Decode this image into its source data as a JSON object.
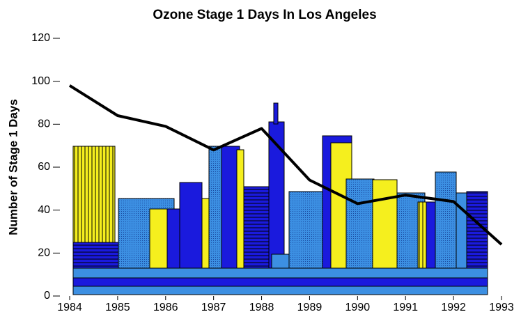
{
  "chart_data": {
    "type": "line",
    "title": "Ozone Stage 1 Days In Los Angeles",
    "y_label": "Number of Stage 1 Days",
    "x": [
      1984,
      1985,
      1986,
      1987,
      1988,
      1989,
      1990,
      1991,
      1992,
      1993
    ],
    "values": [
      98,
      84,
      79,
      68,
      78,
      54,
      43,
      47,
      44,
      24
    ],
    "color": "#000000",
    "xlim": [
      1984,
      1993
    ],
    "xticks": [
      1984,
      1985,
      1986,
      1987,
      1988,
      1989,
      1990,
      1991,
      1992,
      1993
    ],
    "ylim": [
      0,
      120
    ],
    "yticks": [
      0,
      20,
      40,
      60,
      80,
      100,
      120
    ]
  }
}
